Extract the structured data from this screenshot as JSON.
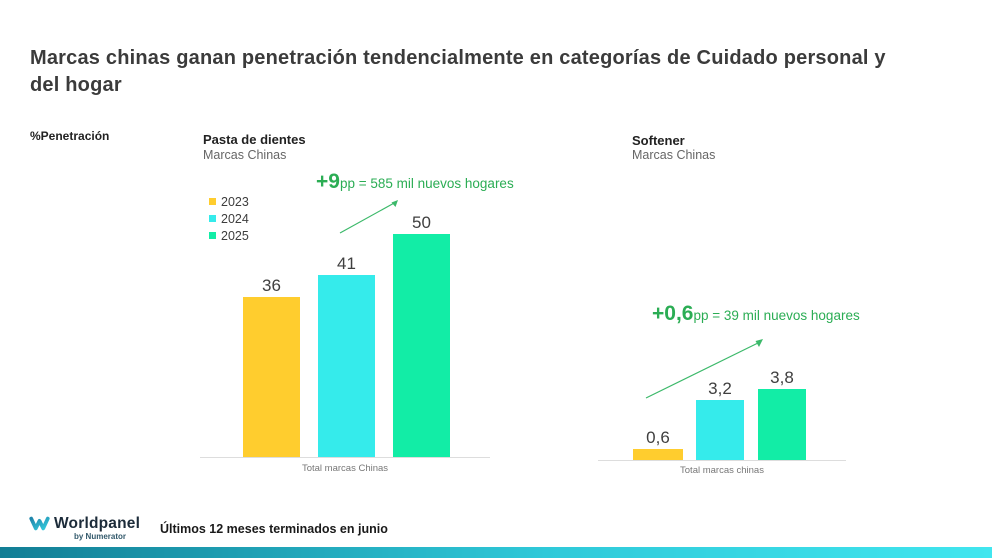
{
  "page": {
    "title": "Marcas chinas ganan penetración tendencialmente en categorías de Cuidado personal y del hogar",
    "axis_label": "%Penetración"
  },
  "chart_data": [
    {
      "type": "bar",
      "title": "Pasta de dientes",
      "subtitle": "Marcas Chinas",
      "categories": [
        "2023",
        "2024",
        "2025"
      ],
      "values": [
        36,
        41,
        50
      ],
      "value_labels": [
        "36",
        "41",
        "50"
      ],
      "bar_colors": [
        "#FFCD2E",
        "#35EBEB",
        "#12EDA6"
      ],
      "legend": [
        {
          "label": "2023",
          "color": "#FFCD2E"
        },
        {
          "label": "2024",
          "color": "#35EBEB"
        },
        {
          "label": "2025",
          "color": "#12EDA6"
        }
      ],
      "legend_position": "left",
      "xlabel": "Total marcas Chinas",
      "ylabel": "%Penetración",
      "ylim": [
        0,
        55
      ],
      "grid": false,
      "annotation": {
        "highlight": "+9",
        "rest": "pp = 585 mil nuevos hogares"
      }
    },
    {
      "type": "bar",
      "title": "Softener",
      "subtitle": "Marcas Chinas",
      "categories": [
        "2023",
        "2024",
        "2025"
      ],
      "values": [
        0.6,
        3.2,
        3.8
      ],
      "value_labels": [
        "0,6",
        "3,2",
        "3,8"
      ],
      "bar_colors": [
        "#FFCD2E",
        "#35EBEB",
        "#12EDA6"
      ],
      "xlabel": "Total marcas chinas",
      "ylabel": "%Penetración",
      "ylim": [
        0,
        4.2
      ],
      "grid": false,
      "annotation": {
        "highlight": "+0,6",
        "rest": "pp = 39 mil nuevos hogares"
      }
    }
  ],
  "footer": {
    "logo_text": "Worldpanel",
    "logo_sub": "by Numerator",
    "note": "Últimos 12 meses terminados en junio"
  },
  "colors": {
    "annotation_green": "#2bad54",
    "arrow_green": "#3cb96a",
    "bottom_bar_left": "#127e95",
    "bottom_bar_right": "#41e6ef"
  }
}
